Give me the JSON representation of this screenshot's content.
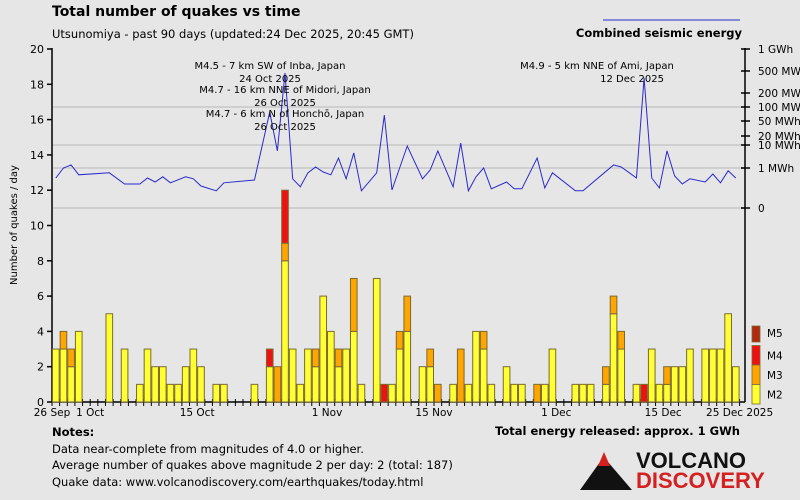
{
  "title": "Total number of quakes vs time",
  "subtitle": "Utsunomiya - past 90 days (updated:24 Dec 2025, 20:45 GMT)",
  "footer": {
    "notes_heading": "Notes:",
    "notes": [
      "Data near-complete from magnitudes of 4.0 or higher.",
      "Average number of quakes above magnitude 2 per day: 2 (total: 187)",
      "Quake data: www.volcanodiscovery.com/earthquakes/today.html"
    ],
    "energy_total": "Total energy released: approx. 1 GWh",
    "logo_text": [
      "VOLCANO",
      "DISCOVERY"
    ]
  },
  "chart_data": {
    "type": "bar",
    "stacked": true,
    "title": "Total number of quakes vs time",
    "ylabel": "Number of quakes / day",
    "ylim": [
      0,
      20
    ],
    "yticks": [
      "0",
      "2",
      "4",
      "6",
      "8",
      "10",
      "12",
      "14",
      "16",
      "18",
      "20"
    ],
    "xtick_labels": [
      {
        "date": "2025-09-26",
        "label": "26 Sep"
      },
      {
        "date": "2025-10-01",
        "label": "1 Oct"
      },
      {
        "date": "2025-10-15",
        "label": "15 Oct"
      },
      {
        "date": "2025-11-01",
        "label": "1 Nov"
      },
      {
        "date": "2025-11-15",
        "label": "15 Nov"
      },
      {
        "date": "2025-12-01",
        "label": "1 Dec"
      },
      {
        "date": "2025-12-15",
        "label": "15 Dec"
      },
      {
        "date": "2025-12-25",
        "label": "25 Dec 2025"
      }
    ],
    "colors": {
      "M2": "#ffff33",
      "M3": "#ffa500",
      "M4": "#ee1111",
      "M5": "#b02a10",
      "energy": "#2a2acc",
      "bar_edge": "#7a6a30"
    },
    "magnitude_legend": [
      "M5",
      "M4",
      "M3",
      "M2"
    ],
    "dates": [
      "2025-09-26",
      "2025-09-27",
      "2025-09-28",
      "2025-09-29",
      "2025-09-30",
      "2025-10-01",
      "2025-10-02",
      "2025-10-03",
      "2025-10-04",
      "2025-10-05",
      "2025-10-06",
      "2025-10-07",
      "2025-10-08",
      "2025-10-09",
      "2025-10-10",
      "2025-10-11",
      "2025-10-12",
      "2025-10-13",
      "2025-10-14",
      "2025-10-15",
      "2025-10-16",
      "2025-10-17",
      "2025-10-18",
      "2025-10-19",
      "2025-10-20",
      "2025-10-21",
      "2025-10-22",
      "2025-10-23",
      "2025-10-24",
      "2025-10-25",
      "2025-10-26",
      "2025-10-27",
      "2025-10-28",
      "2025-10-29",
      "2025-10-30",
      "2025-10-31",
      "2025-11-01",
      "2025-11-02",
      "2025-11-03",
      "2025-11-04",
      "2025-11-05",
      "2025-11-06",
      "2025-11-07",
      "2025-11-08",
      "2025-11-09",
      "2025-11-10",
      "2025-11-11",
      "2025-11-12",
      "2025-11-13",
      "2025-11-14",
      "2025-11-15",
      "2025-11-16",
      "2025-11-17",
      "2025-11-18",
      "2025-11-19",
      "2025-11-20",
      "2025-11-21",
      "2025-11-22",
      "2025-11-23",
      "2025-11-24",
      "2025-11-25",
      "2025-11-26",
      "2025-11-27",
      "2025-11-28",
      "2025-11-29",
      "2025-11-30",
      "2025-12-01",
      "2025-12-02",
      "2025-12-03",
      "2025-12-04",
      "2025-12-05",
      "2025-12-06",
      "2025-12-07",
      "2025-12-08",
      "2025-12-09",
      "2025-12-10",
      "2025-12-11",
      "2025-12-12",
      "2025-12-13",
      "2025-12-14",
      "2025-12-15",
      "2025-12-16",
      "2025-12-17",
      "2025-12-18",
      "2025-12-19",
      "2025-12-20",
      "2025-12-21",
      "2025-12-22",
      "2025-12-23",
      "2025-12-24"
    ],
    "series": [
      {
        "name": "M2",
        "values": [
          3,
          3,
          2,
          4,
          0,
          0,
          0,
          5,
          0,
          3,
          0,
          1,
          3,
          2,
          2,
          1,
          1,
          2,
          3,
          2,
          0,
          1,
          1,
          0,
          0,
          0,
          1,
          0,
          2,
          0,
          8,
          3,
          1,
          3,
          2,
          6,
          4,
          2,
          3,
          4,
          1,
          0,
          7,
          0,
          1,
          3,
          4,
          0,
          2,
          2,
          0,
          0,
          1,
          0,
          1,
          4,
          3,
          1,
          0,
          2,
          1,
          1,
          0,
          0,
          1,
          3,
          0,
          0,
          1,
          1,
          1,
          0,
          1,
          5,
          3,
          0,
          1,
          0,
          3,
          1,
          1,
          2,
          2,
          3,
          0,
          3,
          3,
          3,
          5,
          2
        ]
      },
      {
        "name": "M3",
        "values": [
          0,
          1,
          1,
          0,
          0,
          0,
          0,
          0,
          0,
          0,
          0,
          0,
          0,
          0,
          0,
          0,
          0,
          0,
          0,
          0,
          0,
          0,
          0,
          0,
          0,
          0,
          0,
          0,
          0,
          2,
          1,
          0,
          0,
          0,
          1,
          0,
          0,
          1,
          0,
          3,
          0,
          0,
          0,
          0,
          0,
          1,
          2,
          0,
          0,
          1,
          1,
          0,
          0,
          3,
          0,
          0,
          1,
          0,
          0,
          0,
          0,
          0,
          0,
          1,
          0,
          0,
          0,
          0,
          0,
          0,
          0,
          0,
          1,
          1,
          1,
          0,
          0,
          0,
          0,
          0,
          1,
          0,
          0,
          0,
          0,
          0,
          0,
          0,
          0,
          0
        ]
      },
      {
        "name": "M4",
        "values": [
          0,
          0,
          0,
          0,
          0,
          0,
          0,
          0,
          0,
          0,
          0,
          0,
          0,
          0,
          0,
          0,
          0,
          0,
          0,
          0,
          0,
          0,
          0,
          0,
          0,
          0,
          0,
          0,
          1,
          0,
          3,
          0,
          0,
          0,
          0,
          0,
          0,
          0,
          0,
          0,
          0,
          0,
          0,
          1,
          0,
          0,
          0,
          0,
          0,
          0,
          0,
          0,
          0,
          0,
          0,
          0,
          0,
          0,
          0,
          0,
          0,
          0,
          0,
          0,
          0,
          0,
          0,
          0,
          0,
          0,
          0,
          0,
          0,
          0,
          0,
          0,
          0,
          1,
          0,
          0,
          0,
          0,
          0,
          0,
          0,
          0,
          0,
          0,
          0,
          0
        ]
      },
      {
        "name": "M5",
        "values": [
          0,
          0,
          0,
          0,
          0,
          0,
          0,
          0,
          0,
          0,
          0,
          0,
          0,
          0,
          0,
          0,
          0,
          0,
          0,
          0,
          0,
          0,
          0,
          0,
          0,
          0,
          0,
          0,
          0,
          0,
          0,
          0,
          0,
          0,
          0,
          0,
          0,
          0,
          0,
          0,
          0,
          0,
          0,
          0,
          0,
          0,
          0,
          0,
          0,
          0,
          0,
          0,
          0,
          0,
          0,
          0,
          0,
          0,
          0,
          0,
          0,
          0,
          0,
          0,
          0,
          0,
          0,
          0,
          0,
          0,
          0,
          0,
          0,
          0,
          0,
          0,
          0,
          0,
          0,
          0,
          0,
          0,
          0,
          0,
          0,
          0,
          0,
          0,
          0,
          0
        ]
      }
    ],
    "energy": {
      "name": "Combined seismic energy",
      "unit": "MWh",
      "right_ticks": [
        {
          "label": "1 GWh",
          "value": 1000
        },
        {
          "label": "500 MWh",
          "value": 500
        },
        {
          "label": "200 MWh",
          "value": 200
        },
        {
          "label": "100 MWh",
          "value": 100
        },
        {
          "label": "50 MWh",
          "value": 50
        },
        {
          "label": "20 MWh",
          "value": 20
        },
        {
          "label": "10 MWh",
          "value": 10
        },
        {
          "label": "1 MWh",
          "value": 1
        },
        {
          "label": "0",
          "value": 0
        }
      ],
      "points": [
        [
          "2025-09-26",
          0.75
        ],
        [
          "2025-09-27",
          1.0
        ],
        [
          "2025-09-28",
          2.2
        ],
        [
          "2025-09-29",
          0.83
        ],
        [
          "2025-10-03",
          0.88
        ],
        [
          "2025-10-05",
          0.6
        ],
        [
          "2025-10-07",
          0.6
        ],
        [
          "2025-10-08",
          0.75
        ],
        [
          "2025-10-09",
          0.65
        ],
        [
          "2025-10-10",
          0.78
        ],
        [
          "2025-10-11",
          0.63
        ],
        [
          "2025-10-13",
          0.78
        ],
        [
          "2025-10-14",
          0.73
        ],
        [
          "2025-10-15",
          0.55
        ],
        [
          "2025-10-17",
          0.43
        ],
        [
          "2025-10-18",
          0.63
        ],
        [
          "2025-10-22",
          0.7
        ],
        [
          "2025-10-24",
          82
        ],
        [
          "2025-10-25",
          7.7
        ],
        [
          "2025-10-26",
          473
        ],
        [
          "2025-10-27",
          0.73
        ],
        [
          "2025-10-28",
          0.53
        ],
        [
          "2025-10-29",
          0.88
        ],
        [
          "2025-10-30",
          1.4
        ],
        [
          "2025-10-31",
          0.9
        ],
        [
          "2025-11-01",
          0.83
        ],
        [
          "2025-11-02",
          4.9
        ],
        [
          "2025-11-03",
          0.73
        ],
        [
          "2025-11-04",
          6.9
        ],
        [
          "2025-11-05",
          0.43
        ],
        [
          "2025-11-07",
          0.88
        ],
        [
          "2025-11-08",
          71
        ],
        [
          "2025-11-09",
          0.45
        ],
        [
          "2025-11-11",
          9.6
        ],
        [
          "2025-11-13",
          0.73
        ],
        [
          "2025-11-14",
          0.95
        ],
        [
          "2025-11-15",
          7.7
        ],
        [
          "2025-11-17",
          0.53
        ],
        [
          "2025-11-18",
          12.2
        ],
        [
          "2025-11-19",
          0.43
        ],
        [
          "2025-11-20",
          0.78
        ],
        [
          "2025-11-21",
          1.0
        ],
        [
          "2025-11-22",
          0.48
        ],
        [
          "2025-11-24",
          0.65
        ],
        [
          "2025-11-25",
          0.48
        ],
        [
          "2025-11-26",
          0.48
        ],
        [
          "2025-11-28",
          4.9
        ],
        [
          "2025-11-29",
          0.5
        ],
        [
          "2025-11-30",
          0.88
        ],
        [
          "2025-12-03",
          0.43
        ],
        [
          "2025-12-04",
          0.43
        ],
        [
          "2025-12-08",
          2.2
        ],
        [
          "2025-12-09",
          1.4
        ],
        [
          "2025-12-11",
          0.75
        ],
        [
          "2025-12-12",
          405
        ],
        [
          "2025-12-13",
          0.75
        ],
        [
          "2025-12-14",
          0.5
        ],
        [
          "2025-12-15",
          7.7
        ],
        [
          "2025-12-16",
          0.8
        ],
        [
          "2025-12-17",
          0.6
        ],
        [
          "2025-12-18",
          0.73
        ],
        [
          "2025-12-20",
          0.65
        ],
        [
          "2025-12-21",
          0.85
        ],
        [
          "2025-12-22",
          0.63
        ],
        [
          "2025-12-23",
          0.93
        ],
        [
          "2025-12-24",
          0.75
        ]
      ]
    },
    "annotations": [
      {
        "text": "M4.5 - 7 km SW of Inba, Japan",
        "date_text": "24 Oct 2025",
        "date": "2025-10-24"
      },
      {
        "text": "M4.7 - 16 km NNE of Midori, Japan",
        "date_text": "26 Oct 2025",
        "date": "2025-10-26"
      },
      {
        "text": "M4.7 - 6 km N of Honchō, Japan",
        "date_text": "26 Oct 2025",
        "date": "2025-10-26"
      },
      {
        "text": "M4.9 - 5 km NNE of Ami, Japan",
        "date_text": "12 Dec 2025",
        "date": "2025-12-12"
      }
    ]
  }
}
